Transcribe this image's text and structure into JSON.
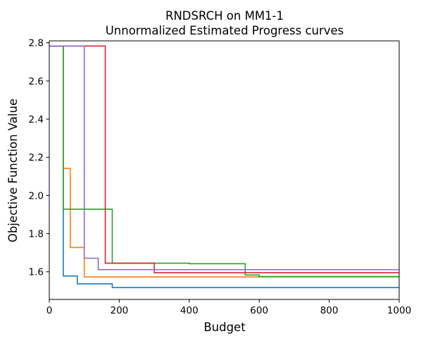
{
  "chart_data": {
    "type": "line",
    "step": "post",
    "title": "RNDSRCH on MM1-1",
    "subtitle": "Unnormalized Estimated Progress curves",
    "xlabel": "Budget",
    "ylabel": "Objective Function Value",
    "xlim": [
      0,
      1000
    ],
    "ylim": [
      1.455,
      2.81
    ],
    "xticks": [
      0,
      200,
      400,
      600,
      800,
      1000
    ],
    "yticks": [
      1.6,
      1.8,
      2.0,
      2.2,
      2.4,
      2.6,
      2.8
    ],
    "xtick_labels": [
      "0",
      "200",
      "400",
      "600",
      "800",
      "1000"
    ],
    "ytick_labels": [
      "1.6",
      "1.8",
      "2.0",
      "2.2",
      "2.4",
      "2.6",
      "2.8"
    ],
    "grid": false,
    "legend": false,
    "series": [
      {
        "color": "#1f77b4",
        "x": [
          0,
          40,
          40,
          80,
          80,
          180,
          180,
          1000
        ],
        "y": [
          2.783,
          2.783,
          1.578,
          1.578,
          1.537,
          1.537,
          1.517,
          1.517
        ]
      },
      {
        "color": "#ff7f0e",
        "x": [
          0,
          40,
          40,
          60,
          60,
          100,
          100,
          1000
        ],
        "y": [
          2.783,
          2.783,
          2.142,
          2.142,
          1.727,
          1.727,
          1.573,
          1.573
        ]
      },
      {
        "color": "#2ca02c",
        "x": [
          0,
          40,
          40,
          180,
          180,
          400,
          400,
          560,
          560,
          600,
          600,
          1000
        ],
        "y": [
          2.783,
          2.783,
          1.928,
          1.928,
          1.645,
          1.645,
          1.642,
          1.642,
          1.583,
          1.583,
          1.575,
          1.575
        ]
      },
      {
        "color": "#d62728",
        "x": [
          0,
          160,
          160,
          300,
          300,
          1000
        ],
        "y": [
          2.783,
          2.783,
          1.645,
          1.645,
          1.595,
          1.595
        ]
      },
      {
        "color": "#9467bd",
        "x": [
          0,
          100,
          100,
          140,
          140,
          300,
          300,
          1000
        ],
        "y": [
          2.783,
          2.783,
          1.671,
          1.671,
          1.611,
          1.611,
          1.611,
          1.611
        ]
      }
    ]
  }
}
